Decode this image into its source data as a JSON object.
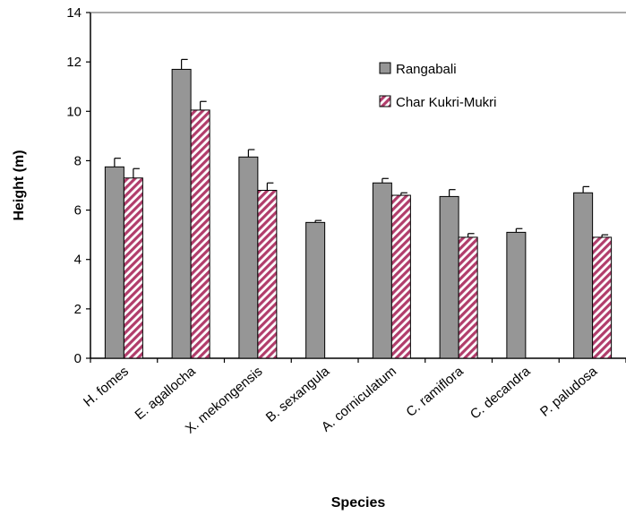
{
  "chart_data": {
    "type": "bar",
    "title": "",
    "xlabel": "Species",
    "ylabel": "Height (m)",
    "ylim": [
      0,
      14
    ],
    "yticks": [
      0,
      2,
      4,
      6,
      8,
      10,
      12,
      14
    ],
    "grid": false,
    "legend_position": "top-right",
    "categories": [
      "H. fomes",
      "E. agallocha",
      "X. mekongensis",
      "B. sexangula",
      "A. corniculatum",
      "C. ramiflora",
      "C. decandra",
      "P. paludosa"
    ],
    "series": [
      {
        "name": "Rangabali",
        "color": "#969696",
        "pattern": "solid",
        "values": [
          7.75,
          11.7,
          8.15,
          5.5,
          7.1,
          6.55,
          5.1,
          6.7
        ],
        "errors": [
          0.35,
          0.4,
          0.3,
          0.08,
          0.18,
          0.28,
          0.15,
          0.25
        ]
      },
      {
        "name": "Char Kukri-Mukri",
        "color": "#b13d6b",
        "pattern": "diagonal-stripes",
        "values": [
          7.3,
          10.05,
          6.8,
          0,
          6.6,
          4.9,
          0,
          4.9
        ],
        "errors": [
          0.38,
          0.35,
          0.3,
          0,
          0.1,
          0.15,
          0,
          0.1
        ]
      }
    ]
  }
}
